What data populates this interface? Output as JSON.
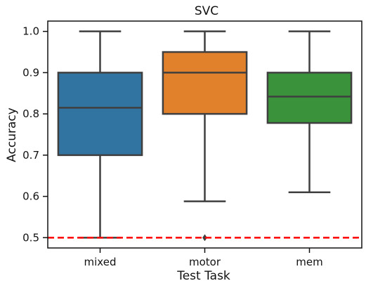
{
  "chart_data": {
    "type": "box",
    "title": "SVC",
    "xlabel": "Test Task",
    "ylabel": "Accuracy",
    "ylim": [
      0.475,
      1.025
    ],
    "yticks": [
      0.5,
      0.6,
      0.7,
      0.8,
      0.9,
      1.0
    ],
    "ytick_labels": [
      "0.5",
      "0.6",
      "0.7",
      "0.8",
      "0.9",
      "1.0"
    ],
    "categories": [
      "mixed",
      "motor",
      "mem"
    ],
    "series": [
      {
        "category": "mixed",
        "whisker_low": 0.5,
        "q1": 0.7,
        "median": 0.815,
        "q3": 0.9,
        "whisker_high": 1.0,
        "outliers": [],
        "color": "#3274a1"
      },
      {
        "category": "motor",
        "whisker_low": 0.588,
        "q1": 0.8,
        "median": 0.9,
        "q3": 0.95,
        "whisker_high": 1.0,
        "outliers": [
          0.5
        ],
        "color": "#e1812c"
      },
      {
        "category": "mem",
        "whisker_low": 0.61,
        "q1": 0.778,
        "median": 0.842,
        "q3": 0.9,
        "whisker_high": 1.0,
        "outliers": [],
        "color": "#3a923a"
      }
    ],
    "reference_line": {
      "y": 0.5,
      "color": "#ff0000",
      "style": "dashed"
    },
    "grid": false,
    "legend": "none"
  }
}
